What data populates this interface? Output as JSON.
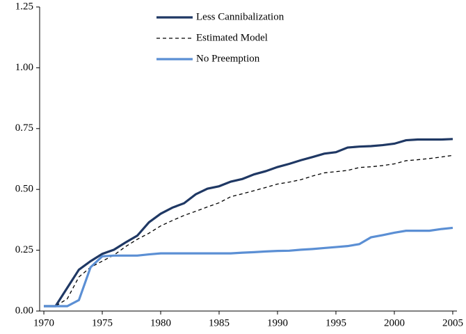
{
  "chart_data": {
    "type": "line",
    "x": [
      1970,
      1971,
      1972,
      1973,
      1974,
      1975,
      1976,
      1977,
      1978,
      1979,
      1980,
      1981,
      1982,
      1983,
      1984,
      1985,
      1986,
      1987,
      1988,
      1989,
      1990,
      1991,
      1992,
      1993,
      1994,
      1995,
      1996,
      1997,
      1998,
      1999,
      2000,
      2001,
      2002,
      2003,
      2004,
      2005
    ],
    "series": [
      {
        "name": "Less Cannibalization",
        "color": "#1f3864",
        "dashed": false,
        "values": [
          0.02,
          0.02,
          0.095,
          0.17,
          0.205,
          0.235,
          0.252,
          0.282,
          0.31,
          0.365,
          0.4,
          0.425,
          0.443,
          0.48,
          0.503,
          0.513,
          0.532,
          0.543,
          0.562,
          0.575,
          0.592,
          0.605,
          0.62,
          0.633,
          0.647,
          0.653,
          0.672,
          0.676,
          0.678,
          0.682,
          0.688,
          0.702,
          0.705,
          0.705,
          0.705,
          0.707
        ]
      },
      {
        "name": "Estimated Model",
        "color": "#000000",
        "dashed": true,
        "values": [
          0.02,
          0.02,
          0.05,
          0.14,
          0.18,
          0.205,
          0.23,
          0.265,
          0.295,
          0.32,
          0.35,
          0.372,
          0.393,
          0.41,
          0.428,
          0.445,
          0.47,
          0.482,
          0.495,
          0.508,
          0.522,
          0.53,
          0.54,
          0.555,
          0.568,
          0.573,
          0.578,
          0.59,
          0.593,
          0.598,
          0.605,
          0.618,
          0.622,
          0.627,
          0.633,
          0.64
        ]
      },
      {
        "name": "No Preemption",
        "color": "#5b8fd4",
        "dashed": false,
        "values": [
          0.02,
          0.02,
          0.02,
          0.045,
          0.18,
          0.225,
          0.228,
          0.228,
          0.228,
          0.233,
          0.237,
          0.237,
          0.237,
          0.237,
          0.237,
          0.237,
          0.237,
          0.24,
          0.242,
          0.245,
          0.247,
          0.248,
          0.252,
          0.255,
          0.259,
          0.263,
          0.267,
          0.275,
          0.303,
          0.312,
          0.322,
          0.33,
          0.33,
          0.33,
          0.337,
          0.342
        ]
      }
    ],
    "xlim": [
      1969.64,
      2005.36
    ],
    "xticks": [
      1970,
      1975,
      1980,
      1985,
      1990,
      1995,
      2000,
      2005
    ],
    "ylim": [
      0,
      1.25
    ],
    "yticks": [
      {
        "value": 0,
        "label": "0.00"
      },
      {
        "value": 0.25,
        "label": "0.25"
      },
      {
        "value": 0.5,
        "label": "0.50"
      },
      {
        "value": 0.75,
        "label": "0.75"
      },
      {
        "value": 1,
        "label": "1.00"
      },
      {
        "value": 1.25,
        "label": "1.25"
      }
    ],
    "legend": "top"
  }
}
